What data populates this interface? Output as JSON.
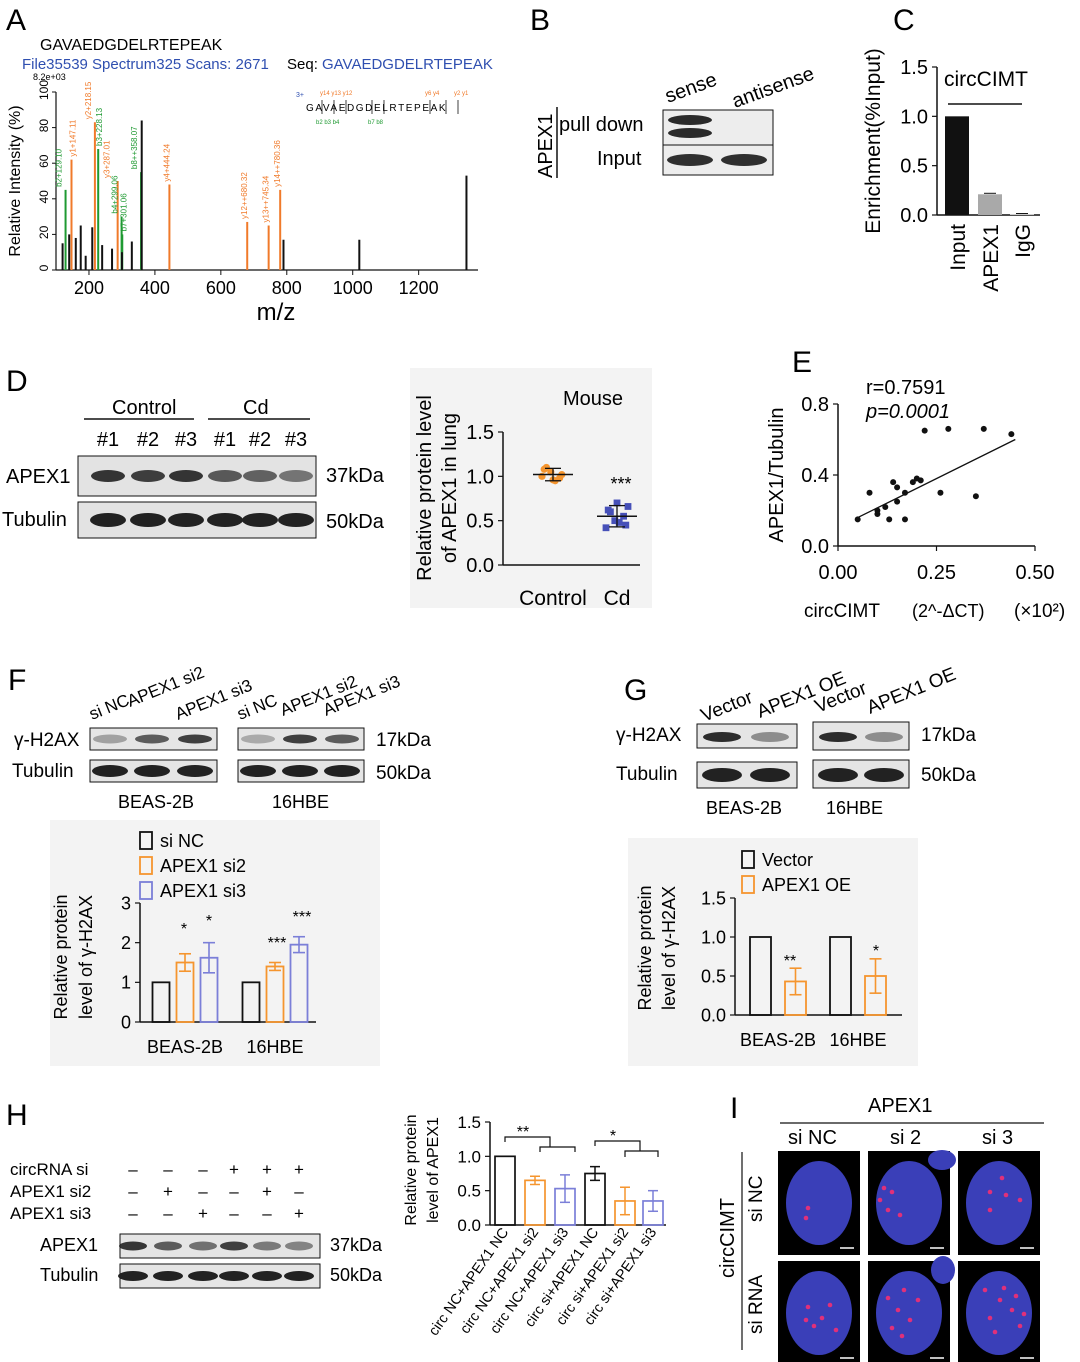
{
  "panels": {
    "A": {
      "letter": "A",
      "peptide": "GAVAEDGDELRTEPEAK",
      "file_info": "File35539 Spectrum325 Scans: 2671",
      "seq_label": "Seq:",
      "seq_value": "GAVAEDGDELRTEPEAK",
      "intensity_note": "8.2e+03",
      "charge_note": "3+",
      "inset_seq": "GAVAEDGDELRTEPEAK",
      "inset_b_ions": "b2 b3 b4",
      "inset_b_ions2": "b7 b8",
      "inset_y_ions_top": "y14 y13 y12",
      "inset_y_ions_top2": "y6 y4",
      "inset_y_ions_top3": "y2 y1",
      "peak_labels": [
        "b2+129.10",
        "y1+147.11",
        "y2+218.15",
        "y3+287.01",
        "b3+228.13",
        "b4+299.06",
        "b7+301.06",
        "b8++358.07",
        "y4+444.24",
        "y12++680.32",
        "y13++745.34",
        "y14++780.36"
      ]
    },
    "B": {
      "letter": "B",
      "col_sense": "sense",
      "col_antisense": "antisense",
      "protein": "APEX1",
      "row_pulldown": "pull down",
      "row_input": "Input"
    },
    "C": {
      "letter": "C",
      "series_label": "circCIMT"
    },
    "D": {
      "letter": "D",
      "group_control": "Control",
      "group_cd": "Cd",
      "lanes": [
        "#1",
        "#2",
        "#3",
        "#1",
        "#2",
        "#3"
      ],
      "row_apex1": "APEX1",
      "row_tubulin": "Tubulin",
      "kda_apex1": "37kDa",
      "kda_tubulin": "50kDa",
      "significance": "***"
    },
    "E": {
      "letter": "E",
      "r_text": "r=0.7591",
      "p_text": "p=0.0001",
      "x_multiplier": "(×10²)"
    },
    "F": {
      "letter": "F",
      "lanes_left": [
        "si NC",
        "APEX1 si2",
        "APEX1 si3"
      ],
      "lanes_right": [
        "si NC",
        "APEX1 si2",
        "APEX1 si3"
      ],
      "row_gh2ax": "γ-H2AX",
      "row_tubulin": "Tubulin",
      "kda_gh2ax": "17kDa",
      "kda_tubulin": "50kDa",
      "cell_left": "BEAS-2B",
      "cell_right": "16HBE",
      "legend": [
        "si NC",
        "APEX1 si2",
        "APEX1 si3"
      ],
      "stars": [
        "*",
        "*",
        "***",
        "***"
      ]
    },
    "G": {
      "letter": "G",
      "lanes": [
        "Vector",
        "APEX1 OE",
        "Vector",
        "APEX1 OE"
      ],
      "row_gh2ax": "γ-H2AX",
      "row_tubulin": "Tubulin",
      "kda_gh2ax": "17kDa",
      "kda_tubulin": "50kDa",
      "cell_left": "BEAS-2B",
      "cell_right": "16HBE",
      "legend": [
        "Vector",
        "APEX1 OE"
      ],
      "stars": [
        "**",
        "*"
      ]
    },
    "H": {
      "letter": "H",
      "rows": [
        {
          "label": "circRNA si",
          "signs": [
            "–",
            "–",
            "–",
            "+",
            "+",
            "+"
          ]
        },
        {
          "label": "APEX1 si2",
          "signs": [
            "–",
            "+",
            "–",
            "–",
            "+",
            "–"
          ]
        },
        {
          "label": "APEX1 si3",
          "signs": [
            "–",
            "–",
            "+",
            "–",
            "–",
            "+"
          ]
        }
      ],
      "row_apex1": "APEX1",
      "row_tubulin": "Tubulin",
      "kda_apex1": "37kDa",
      "kda_tubulin": "50kDa",
      "stars": [
        "**",
        "*"
      ]
    },
    "I": {
      "letter": "I",
      "title": "APEX1",
      "col_labels": [
        "si NC",
        "si 2",
        "si 3"
      ],
      "row_group": "circCIMT",
      "row_labels": [
        "si NC",
        "si RNA"
      ]
    }
  },
  "colors": {
    "orange": "#f5952e",
    "purple": "#7b7fd8",
    "green_ion": "#1f9a32",
    "orange_ion": "#f07a2a",
    "blue_text": "#2f4fb0",
    "nucleus": "#3a3fb8",
    "foci": "#e0307a"
  },
  "chart_data": [
    {
      "id": "A",
      "type": "bar",
      "title": "",
      "xlabel": "m/z",
      "ylabel": "Relative Intensity (%)",
      "xlim": [
        100,
        1380
      ],
      "ylim": [
        0,
        100
      ],
      "xticks": [
        200,
        400,
        600,
        800,
        1000,
        1200
      ],
      "yticks": [
        0,
        20,
        40,
        60,
        80,
        100
      ],
      "series": [
        {
          "name": "b",
          "color": "green",
          "points": [
            [
              129,
              45
            ],
            [
              147,
              20
            ],
            [
              228,
              68
            ],
            [
              299,
              30
            ],
            [
              301,
              20
            ],
            [
              358,
              55
            ]
          ]
        },
        {
          "name": "y",
          "color": "orange",
          "points": [
            [
              147,
              62
            ],
            [
              218,
              83
            ],
            [
              287,
              50
            ],
            [
              444,
              48
            ],
            [
              680,
              27
            ],
            [
              745,
              25
            ],
            [
              780,
              45
            ]
          ]
        },
        {
          "name": "other",
          "color": "black",
          "points": [
            [
              120,
              15
            ],
            [
              140,
              20
            ],
            [
              160,
              18
            ],
            [
              175,
              25
            ],
            [
              190,
              8
            ],
            [
              210,
              24
            ],
            [
              240,
              14
            ],
            [
              270,
              12
            ],
            [
              300,
              10
            ],
            [
              330,
              16
            ],
            [
              360,
              84
            ],
            [
              790,
              17
            ],
            [
              1020,
              17
            ],
            [
              1345,
              53
            ]
          ]
        }
      ]
    },
    {
      "id": "C",
      "type": "bar",
      "title": "",
      "ylabel": "Enrichment(%Input)",
      "categories": [
        "Input",
        "APEX1",
        "IgG"
      ],
      "values": [
        1.0,
        0.21,
        0.01
      ],
      "errors": [
        0,
        0.01,
        0.005
      ],
      "ylim": [
        0,
        1.5
      ],
      "yticks": [
        0.0,
        0.5,
        1.0,
        1.5
      ]
    },
    {
      "id": "D",
      "type": "scatter",
      "title": "Mouse",
      "ylabel": "Relative protein level of APEX1 in lung",
      "categories": [
        "Control",
        "Cd"
      ],
      "ylim": [
        0,
        1.5
      ],
      "yticks": [
        0.0,
        0.5,
        1.0,
        1.5
      ],
      "series": [
        {
          "name": "Control",
          "mean": 1.02,
          "sd": 0.07,
          "values": [
            1.0,
            1.05,
            0.98,
            1.08,
            0.96,
            1.02,
            1.1,
            0.95
          ]
        },
        {
          "name": "Cd",
          "mean": 0.55,
          "sd": 0.12,
          "values": [
            0.42,
            0.5,
            0.55,
            0.62,
            0.7,
            0.45,
            0.6,
            0.48,
            0.66
          ]
        }
      ]
    },
    {
      "id": "E",
      "type": "scatter",
      "title": "",
      "xlabel": "circCIMT (2^-ΔCT)",
      "ylabel": "APEX1/Tubulin",
      "xlim": [
        0,
        0.5
      ],
      "ylim": [
        0,
        0.8
      ],
      "xticks": [
        0.0,
        0.25,
        0.5
      ],
      "yticks": [
        0.0,
        0.4,
        0.8
      ],
      "points": [
        [
          0.05,
          0.15
        ],
        [
          0.08,
          0.3
        ],
        [
          0.1,
          0.18
        ],
        [
          0.1,
          0.2
        ],
        [
          0.12,
          0.22
        ],
        [
          0.13,
          0.15
        ],
        [
          0.14,
          0.36
        ],
        [
          0.15,
          0.33
        ],
        [
          0.15,
          0.25
        ],
        [
          0.17,
          0.3
        ],
        [
          0.17,
          0.15
        ],
        [
          0.19,
          0.36
        ],
        [
          0.2,
          0.38
        ],
        [
          0.21,
          0.37
        ],
        [
          0.22,
          0.65
        ],
        [
          0.26,
          0.3
        ],
        [
          0.28,
          0.66
        ],
        [
          0.35,
          0.28
        ],
        [
          0.37,
          0.66
        ],
        [
          0.44,
          0.63
        ]
      ],
      "fit": [
        [
          0.05,
          0.16
        ],
        [
          0.45,
          0.6
        ]
      ]
    },
    {
      "id": "F",
      "type": "bar",
      "title": "",
      "ylabel": "Relative protein level of γ-H2AX",
      "categories": [
        "BEAS-2B",
        "16HBE"
      ],
      "ylim": [
        0,
        3
      ],
      "yticks": [
        0,
        1,
        2,
        3
      ],
      "series": [
        {
          "name": "si NC",
          "values": [
            1.0,
            1.0
          ],
          "errors": [
            0,
            0
          ]
        },
        {
          "name": "APEX1 si2",
          "values": [
            1.5,
            1.4
          ],
          "errors": [
            0.22,
            0.1
          ]
        },
        {
          "name": "APEX1 si3",
          "values": [
            1.62,
            1.95
          ],
          "errors": [
            0.38,
            0.2
          ]
        }
      ]
    },
    {
      "id": "G",
      "type": "bar",
      "title": "",
      "ylabel": "Relative protein level of γ-H2AX",
      "categories": [
        "BEAS-2B",
        "16HBE"
      ],
      "ylim": [
        0,
        1.5
      ],
      "yticks": [
        0.0,
        0.5,
        1.0,
        1.5
      ],
      "series": [
        {
          "name": "Vector",
          "values": [
            1.0,
            1.0
          ],
          "errors": [
            0,
            0
          ]
        },
        {
          "name": "APEX1 OE",
          "values": [
            0.43,
            0.5
          ],
          "errors": [
            0.17,
            0.22
          ]
        }
      ]
    },
    {
      "id": "H",
      "type": "bar",
      "title": "",
      "ylabel": "Relative protein level of APEX1",
      "categories": [
        "circ NC+APEX1 NC",
        "circ NC+APEX1 si2",
        "circ NC+APEX1 si3",
        "circ si+APEX1 NC",
        "circ si+APEX1 si2",
        "circ si+APEX1 si3"
      ],
      "values": [
        1.0,
        0.65,
        0.53,
        0.75,
        0.35,
        0.35
      ],
      "errors": [
        0,
        0.06,
        0.2,
        0.1,
        0.2,
        0.15
      ],
      "ylim": [
        0,
        1.5
      ],
      "yticks": [
        0.0,
        0.5,
        1.0,
        1.5
      ]
    }
  ]
}
